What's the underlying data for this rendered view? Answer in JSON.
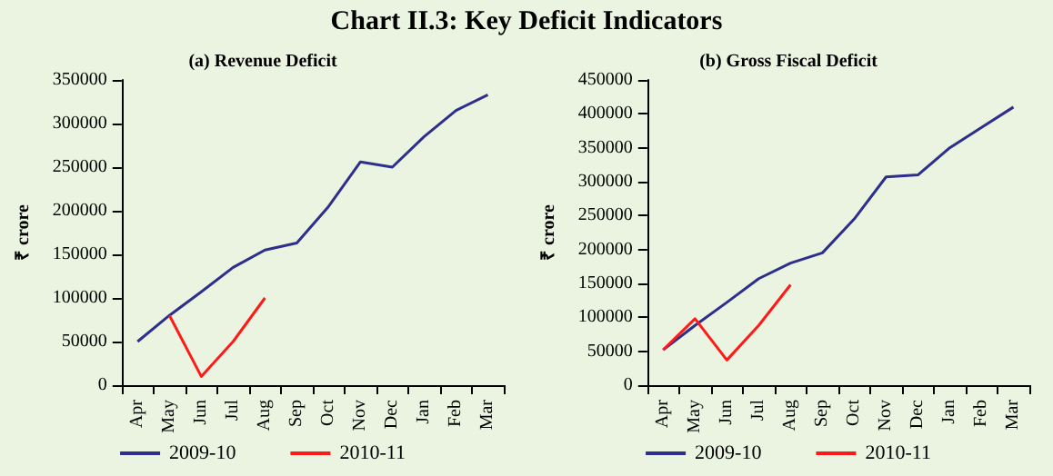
{
  "chart_data": [
    {
      "type": "line",
      "title": "Chart II.3: Key Deficit Indicators",
      "subtitle": "(a) Revenue Deficit",
      "ylabel": "₹ crore",
      "categories": [
        "Apr",
        "May",
        "Jun",
        "Jul",
        "Aug",
        "Sep",
        "Oct",
        "Nov",
        "Dec",
        "Jan",
        "Feb",
        "Mar"
      ],
      "series": [
        {
          "name": "2009-10",
          "color": "#2e2e8c",
          "values": [
            50000,
            80000,
            107000,
            135000,
            155000,
            163000,
            205000,
            256000,
            250000,
            285000,
            315000,
            333000
          ]
        },
        {
          "name": "2010-11",
          "color": "#ff1a1a",
          "values": [
            null,
            80000,
            10000,
            50000,
            100000,
            null,
            null,
            null,
            null,
            null,
            null,
            null
          ]
        }
      ],
      "ylim": [
        0,
        350000
      ],
      "yticks": [
        0,
        50000,
        100000,
        150000,
        200000,
        250000,
        300000,
        350000
      ],
      "grid": false,
      "legend": "bottom",
      "marker": "none",
      "line_style": "solid"
    },
    {
      "type": "line",
      "subtitle": "(b) Gross Fiscal Deficit",
      "ylabel": "₹ crore",
      "categories": [
        "Apr",
        "May",
        "Jun",
        "Jul",
        "Aug",
        "Sep",
        "Oct",
        "Nov",
        "Dec",
        "Jan",
        "Feb",
        "Mar"
      ],
      "series": [
        {
          "name": "2009-10",
          "color": "#2e2e8c",
          "values": [
            52000,
            88000,
            122000,
            157000,
            180000,
            195000,
            245000,
            307000,
            310000,
            350000,
            380000,
            410000
          ]
        },
        {
          "name": "2010-11",
          "color": "#ff1a1a",
          "values": [
            52000,
            98000,
            37000,
            88000,
            148000,
            null,
            null,
            null,
            null,
            null,
            null,
            null
          ]
        }
      ],
      "ylim": [
        0,
        450000
      ],
      "yticks": [
        0,
        50000,
        100000,
        150000,
        200000,
        250000,
        300000,
        350000,
        400000,
        450000
      ],
      "grid": false,
      "legend": "bottom",
      "marker": "none",
      "line_style": "solid"
    }
  ]
}
